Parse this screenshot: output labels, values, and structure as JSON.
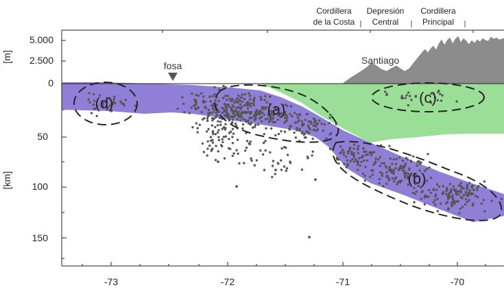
{
  "figure": {
    "topo_unit": "[m]",
    "depth_unit": "[km]",
    "topo_ticks": [
      "5.000",
      "2.500",
      "0"
    ],
    "depth_ticks": [
      "50",
      "100",
      "150"
    ],
    "x_ticks": [
      "-73",
      "-72",
      "-71",
      "-70"
    ],
    "regions": [
      {
        "line1": "Cordillera",
        "line2": "de la Costa"
      },
      {
        "line1": "Depresión",
        "line2": "Central"
      },
      {
        "line1": "Cordillera",
        "line2": "Principal"
      }
    ],
    "trench_label": "fosa",
    "city_label": "Santiago",
    "zones": [
      "(a)",
      "(b)",
      "(c)",
      "(d)"
    ],
    "colors": {
      "slab": "#8f7fd6",
      "crust": "#9bde98",
      "topography": "#8c8c8c",
      "seismicity": "#555555"
    }
  }
}
